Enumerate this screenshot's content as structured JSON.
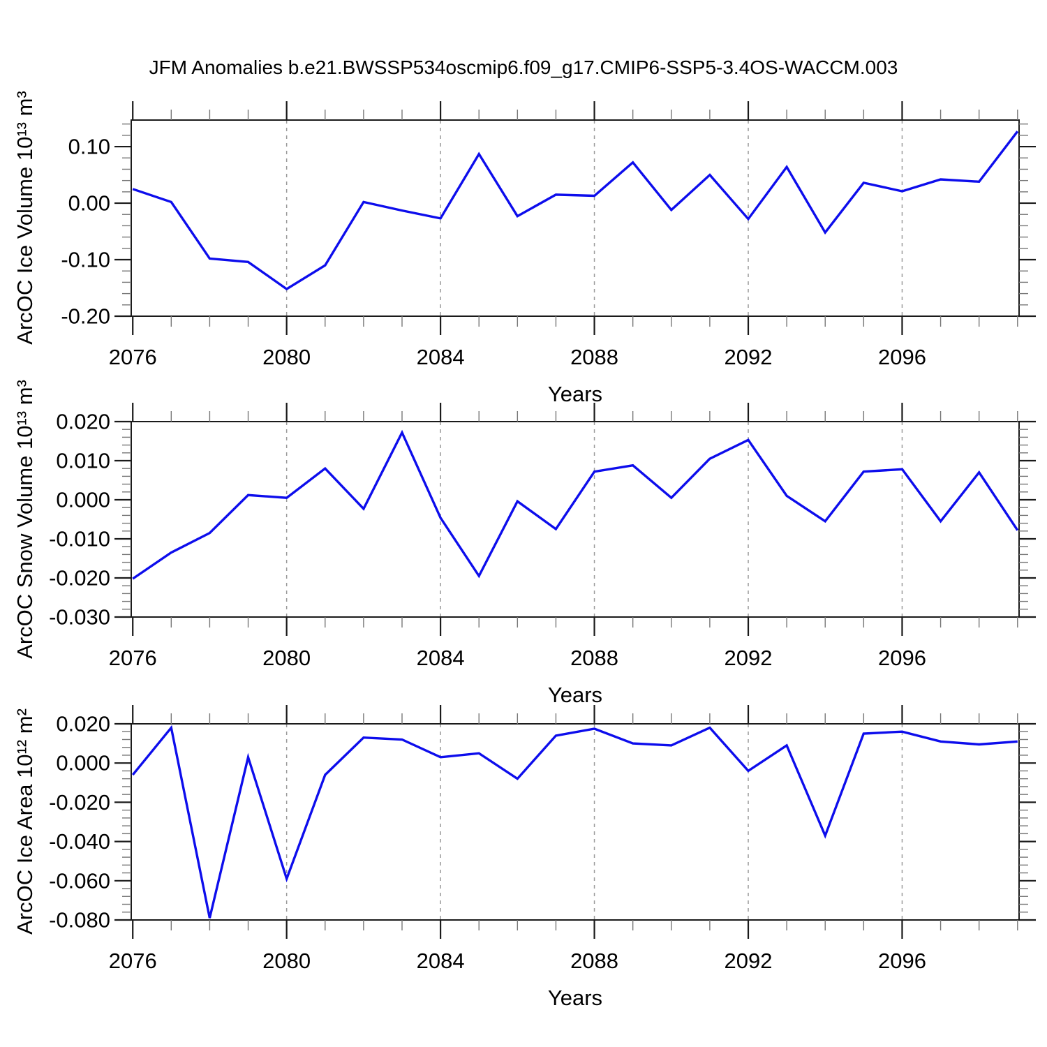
{
  "title": "JFM Anomalies b.e21.BWSSP534oscmip6.f09_g17.CMIP6-SSP5-3.4OS-WACCM.003",
  "chart_data": [
    {
      "type": "line",
      "ylabel": "ArcOC Ice Volume 10¹³ m³",
      "xlabel": "Years",
      "series_color": "#0d0dec",
      "x": [
        2076,
        2077,
        2078,
        2079,
        2080,
        2081,
        2082,
        2083,
        2084,
        2085,
        2086,
        2087,
        2088,
        2089,
        2090,
        2091,
        2092,
        2093,
        2094,
        2095,
        2096,
        2097,
        2098,
        2099
      ],
      "values": [
        0.025,
        0.002,
        -0.098,
        -0.104,
        -0.152,
        -0.11,
        0.002,
        -0.013,
        -0.027,
        0.087,
        -0.023,
        0.015,
        0.013,
        0.072,
        -0.012,
        0.05,
        -0.028,
        0.064,
        -0.052,
        0.036,
        0.021,
        0.042,
        0.038,
        0.127
      ],
      "xlim": [
        2075.96,
        2099.04
      ],
      "ylim": [
        -0.2,
        0.147
      ],
      "xticks": [
        2076,
        2080,
        2084,
        2088,
        2092,
        2096
      ],
      "xtick_labels": [
        "2076",
        "2080",
        "2084",
        "2088",
        "2092",
        "2096"
      ],
      "xminor_step": 1,
      "grid_x": [
        2080,
        2084,
        2088,
        2092,
        2096
      ],
      "yticks": [
        0.1,
        0.0,
        -0.1,
        -0.2
      ],
      "ytick_labels": [
        "0.10",
        "0.00",
        "-0.10",
        "-0.20"
      ],
      "yminor_step": 0.02,
      "grid": "x-dashed"
    },
    {
      "type": "line",
      "ylabel": "ArcOC Snow Volume 10¹³ m³",
      "xlabel": "Years",
      "series_color": "#0d0dec",
      "x": [
        2076,
        2077,
        2078,
        2079,
        2080,
        2081,
        2082,
        2083,
        2084,
        2085,
        2086,
        2087,
        2088,
        2089,
        2090,
        2091,
        2092,
        2093,
        2094,
        2095,
        2096,
        2097,
        2098,
        2099
      ],
      "values": [
        -0.0202,
        -0.0135,
        -0.0085,
        0.0012,
        0.0005,
        0.008,
        -0.0023,
        0.0172,
        -0.0046,
        -0.0195,
        -0.0004,
        -0.0075,
        0.0072,
        0.0088,
        0.0005,
        0.0105,
        0.0153,
        0.001,
        -0.0055,
        0.0072,
        0.0078,
        -0.0055,
        0.007,
        -0.0078
      ],
      "xlim": [
        2075.96,
        2099.04
      ],
      "ylim": [
        -0.03,
        0.02
      ],
      "xticks": [
        2076,
        2080,
        2084,
        2088,
        2092,
        2096
      ],
      "xtick_labels": [
        "2076",
        "2080",
        "2084",
        "2088",
        "2092",
        "2096"
      ],
      "xminor_step": 1,
      "grid_x": [
        2080,
        2084,
        2088,
        2092,
        2096
      ],
      "yticks": [
        0.02,
        0.01,
        0.0,
        -0.01,
        -0.02,
        -0.03
      ],
      "ytick_labels": [
        "0.020",
        "0.010",
        "0.000",
        "-0.010",
        "-0.020",
        "-0.030"
      ],
      "yminor_step": 0.002,
      "grid": "x-dashed"
    },
    {
      "type": "line",
      "ylabel": "ArcOC Ice Area 10¹² m²",
      "xlabel": "Years",
      "series_color": "#0d0dec",
      "x": [
        2076,
        2077,
        2078,
        2079,
        2080,
        2081,
        2082,
        2083,
        2084,
        2085,
        2086,
        2087,
        2088,
        2089,
        2090,
        2091,
        2092,
        2093,
        2094,
        2095,
        2096,
        2097,
        2098,
        2099
      ],
      "values": [
        -0.006,
        0.018,
        -0.079,
        0.003,
        -0.059,
        -0.006,
        0.013,
        0.012,
        0.003,
        0.005,
        -0.008,
        0.014,
        0.0175,
        0.01,
        0.009,
        0.018,
        -0.004,
        0.009,
        -0.037,
        0.015,
        0.016,
        0.011,
        0.0095,
        0.011
      ],
      "xlim": [
        2075.96,
        2099.04
      ],
      "ylim": [
        -0.08,
        0.02
      ],
      "xticks": [
        2076,
        2080,
        2084,
        2088,
        2092,
        2096
      ],
      "xtick_labels": [
        "2076",
        "2080",
        "2084",
        "2088",
        "2092",
        "2096"
      ],
      "xminor_step": 1,
      "grid_x": [
        2080,
        2084,
        2088,
        2092,
        2096
      ],
      "yticks": [
        0.02,
        0.0,
        -0.02,
        -0.04,
        -0.06,
        -0.08
      ],
      "ytick_labels": [
        "0.020",
        "0.000",
        "-0.020",
        "-0.040",
        "-0.060",
        "-0.080"
      ],
      "yminor_step": 0.004,
      "grid": "x-dashed"
    }
  ]
}
